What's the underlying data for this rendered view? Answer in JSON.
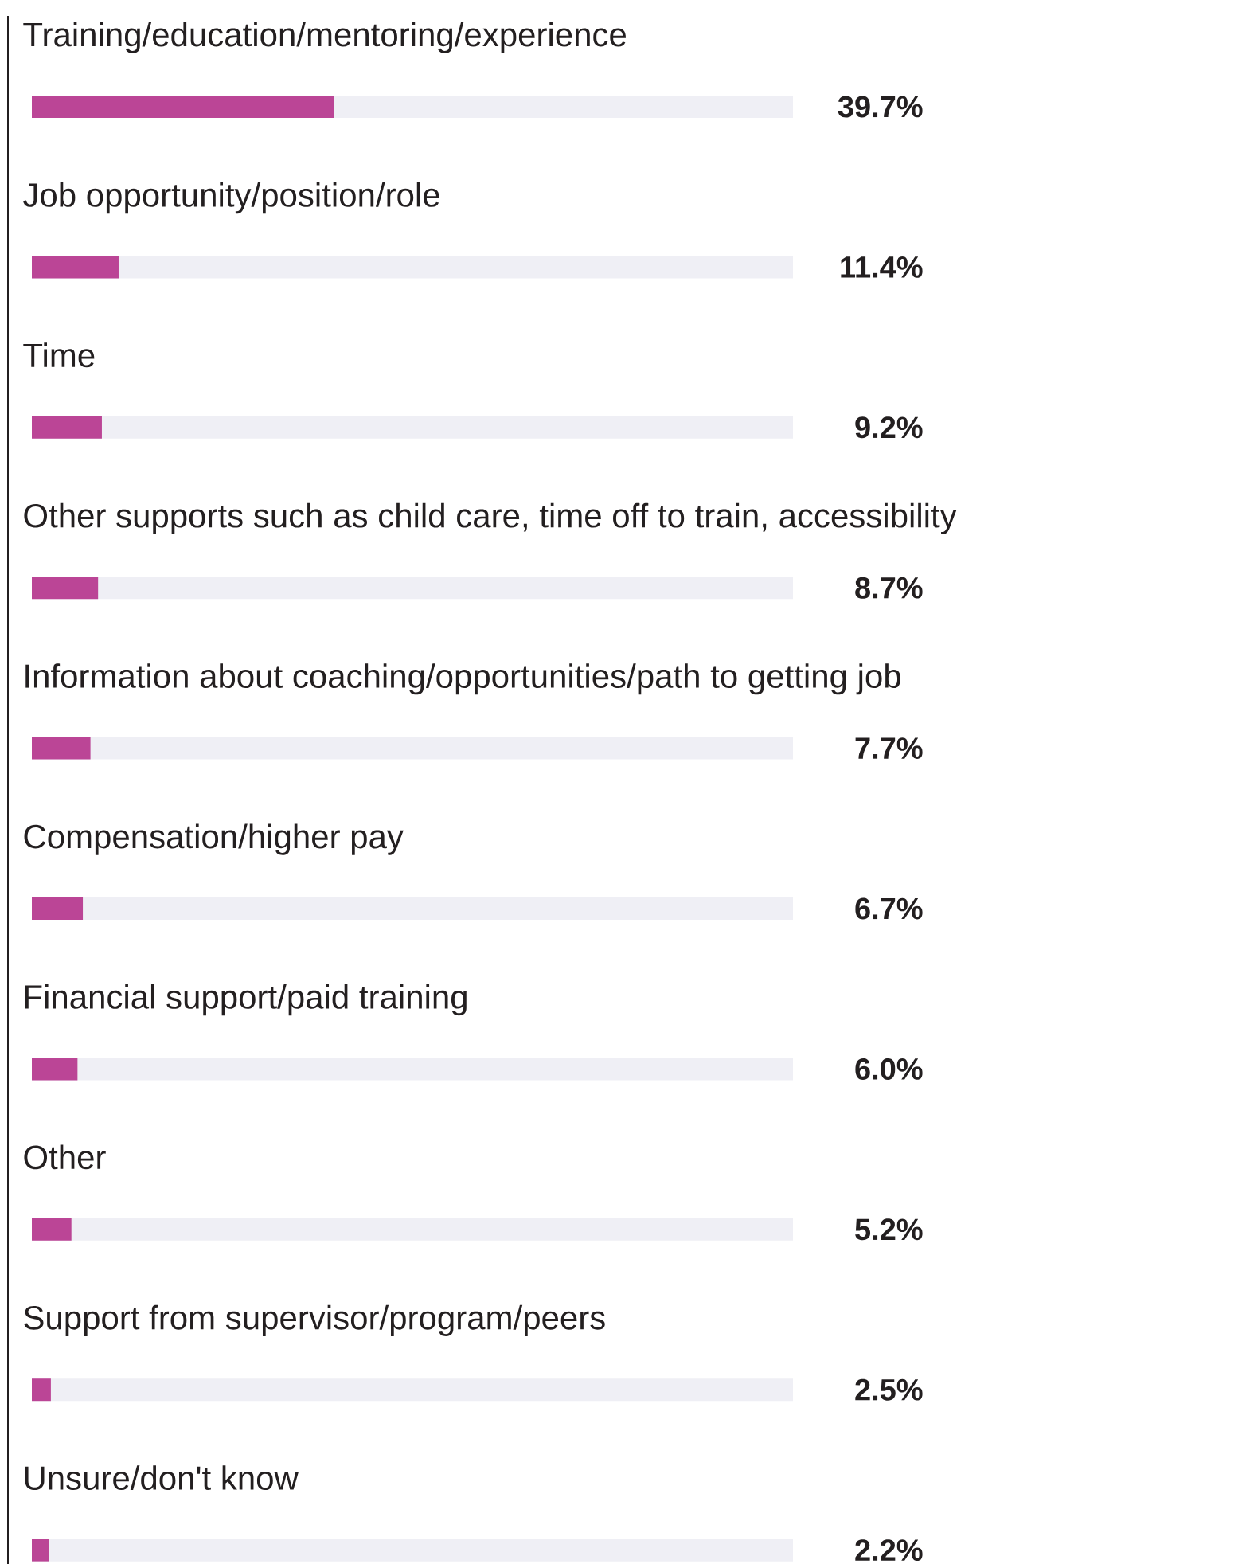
{
  "chart_data": {
    "type": "bar",
    "orientation": "horizontal",
    "categories": [
      "Training/education/mentoring/experience",
      "Job opportunity/position/role",
      "Time",
      "Other supports such as child care, time off to train, accessibility",
      "Information about coaching/opportunities/path to getting job",
      "Compensation/higher pay",
      "Financial support/paid training",
      "Other",
      "Support from supervisor/program/peers",
      "Unsure/don't know"
    ],
    "values": [
      39.7,
      11.4,
      9.2,
      8.7,
      7.7,
      6.7,
      6.0,
      5.2,
      2.5,
      2.2
    ],
    "value_labels": [
      "39.7%",
      "11.4%",
      "9.2%",
      "8.7%",
      "7.7%",
      "6.7%",
      "6.0%",
      "5.2%",
      "2.5%",
      "2.2%"
    ],
    "color": "#bb4596",
    "xlim": [
      0,
      100
    ],
    "tick_labels": false
  }
}
